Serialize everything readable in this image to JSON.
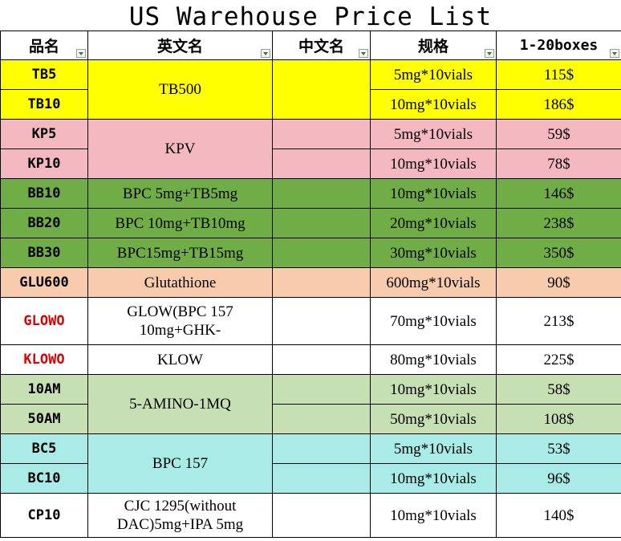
{
  "title": "US Warehouse Price List",
  "headers": {
    "code": "品名",
    "english_name": "英文名",
    "chinese_name": "中文名",
    "spec": "规格",
    "price": "1-20boxes"
  },
  "rows": [
    {
      "code": "TB5",
      "name": "TB500",
      "cn": "",
      "spec": "5mg*10vials",
      "price": "115$",
      "color": "#ffff00"
    },
    {
      "code": "TB10",
      "spec": "10mg*10vials",
      "price": "186$",
      "color": "#ffff00"
    },
    {
      "code": "KP5",
      "name": "KPV",
      "cn": "",
      "spec": "5mg*10vials",
      "price": "59$",
      "color": "#f4b9c0"
    },
    {
      "code": "KP10",
      "spec": "10mg*10vials",
      "price": "78$",
      "color": "#f4b9c0"
    },
    {
      "code": "BB10",
      "name": "BPC 5mg+TB5mg",
      "cn": "",
      "spec": "10mg*10vials",
      "price": "146$",
      "color": "#70ad47"
    },
    {
      "code": "BB20",
      "name": "BPC 10mg+TB10mg",
      "cn": "",
      "spec": "20mg*10vials",
      "price": "238$",
      "color": "#70ad47"
    },
    {
      "code": "BB30",
      "name": "BPC15mg+TB15mg",
      "cn": "",
      "spec": "30mg*10vials",
      "price": "350$",
      "color": "#70ad47"
    },
    {
      "code": "GLU600",
      "name": "Glutathione",
      "cn": "",
      "spec": "600mg*10vials",
      "price": "90$",
      "color": "#f8cbad"
    },
    {
      "code": "GLOWO",
      "name_line1": "GLOW(BPC 157",
      "name_line2": "10mg+GHK-",
      "cn": "",
      "spec": "70mg*10vials",
      "price": "213$",
      "code_color": "#e00000"
    },
    {
      "code": "KLOWO",
      "name": "KLOW",
      "cn": "",
      "spec": "80mg*10vials",
      "price": "225$",
      "code_color": "#e00000"
    },
    {
      "code": "10AM",
      "name": "5-AMINO-1MQ",
      "cn": "",
      "spec": "10mg*10vials",
      "price": "58$",
      "color": "#c6e0b4"
    },
    {
      "code": "50AM",
      "spec": "50mg*10vials",
      "price": "108$",
      "color": "#c6e0b4"
    },
    {
      "code": "BC5",
      "name": "BPC 157",
      "cn": "",
      "spec": "5mg*10vials",
      "price": "53$",
      "color": "#a9ebe6"
    },
    {
      "code": "BC10",
      "spec": "10mg*10vials",
      "price": "96$",
      "color": "#a9ebe6"
    },
    {
      "code": "CP10",
      "name_line1": "CJC 1295(without",
      "name_line2": "DAC)5mg+IPA 5mg",
      "cn": "",
      "spec": "10mg*10vials",
      "price": "140$"
    }
  ]
}
